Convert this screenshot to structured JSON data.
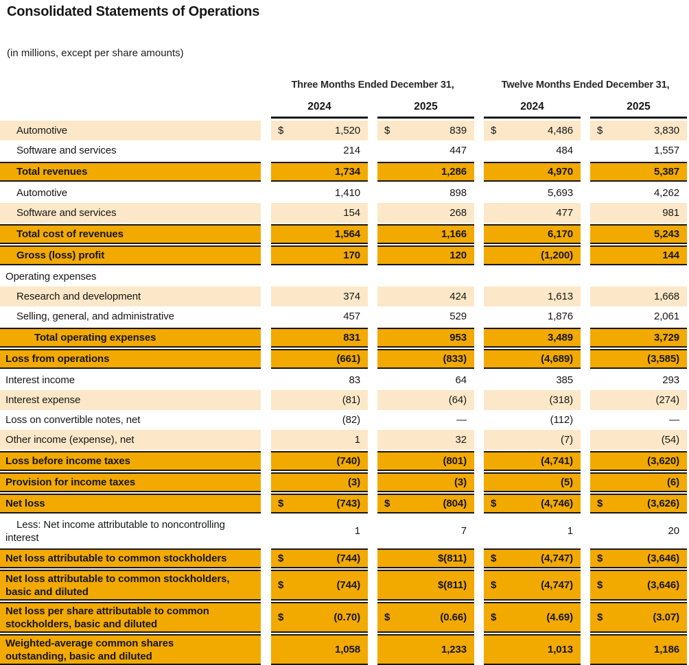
{
  "title": "Consolidated Statements of Operations",
  "subtitle": "(in millions, except per share amounts)",
  "colors": {
    "accent_orange": "#F2A900",
    "accent_cream": "#FCE8C8",
    "text": "#161616"
  },
  "table": {
    "col_groups": [
      "Three Months Ended December 31,",
      "Twelve Months Ended December 31,"
    ],
    "years": [
      "2024",
      "2025",
      "2024",
      "2025"
    ],
    "rows": [
      {
        "label": "Automotive",
        "style": "shaded",
        "indent": 1,
        "cells": [
          {
            "c": "$",
            "v": "1,520"
          },
          {
            "c": "$",
            "v": "839"
          },
          {
            "c": "$",
            "v": "4,486"
          },
          {
            "c": "$",
            "v": "3,830"
          }
        ]
      },
      {
        "label": "Software and services",
        "style": "plain",
        "indent": 1,
        "cells": [
          {
            "c": "",
            "v": "214"
          },
          {
            "c": "",
            "v": "447"
          },
          {
            "c": "",
            "v": "484"
          },
          {
            "c": "",
            "v": "1,557"
          }
        ]
      },
      {
        "label": "Total revenues",
        "style": "total",
        "indent": 1,
        "cells": [
          {
            "c": "",
            "v": "1,734"
          },
          {
            "c": "",
            "v": "1,286"
          },
          {
            "c": "",
            "v": "4,970"
          },
          {
            "c": "",
            "v": "5,387"
          }
        ]
      },
      {
        "label": "Automotive",
        "style": "plain",
        "indent": 1,
        "cells": [
          {
            "c": "",
            "v": "1,410"
          },
          {
            "c": "",
            "v": "898"
          },
          {
            "c": "",
            "v": "5,693"
          },
          {
            "c": "",
            "v": "4,262"
          }
        ]
      },
      {
        "label": "Software and services",
        "style": "shaded",
        "indent": 1,
        "cells": [
          {
            "c": "",
            "v": "154"
          },
          {
            "c": "",
            "v": "268"
          },
          {
            "c": "",
            "v": "477"
          },
          {
            "c": "",
            "v": "981"
          }
        ]
      },
      {
        "label": "Total cost of revenues",
        "style": "total",
        "indent": 1,
        "cells": [
          {
            "c": "",
            "v": "1,564"
          },
          {
            "c": "",
            "v": "1,166"
          },
          {
            "c": "",
            "v": "6,170"
          },
          {
            "c": "",
            "v": "5,243"
          }
        ]
      },
      {
        "label": "Gross (loss) profit",
        "style": "total",
        "indent": 1,
        "cells": [
          {
            "c": "",
            "v": "170"
          },
          {
            "c": "",
            "v": "120"
          },
          {
            "c": "",
            "v": "(1,200)"
          },
          {
            "c": "",
            "v": "144"
          }
        ]
      },
      {
        "label": "Operating expenses",
        "style": "plain",
        "indent": 0,
        "cells": [
          null,
          null,
          null,
          null
        ]
      },
      {
        "label": "Research and development",
        "style": "shaded",
        "indent": 1,
        "cells": [
          {
            "c": "",
            "v": "374"
          },
          {
            "c": "",
            "v": "424"
          },
          {
            "c": "",
            "v": "1,613"
          },
          {
            "c": "",
            "v": "1,668"
          }
        ]
      },
      {
        "label": "Selling, general, and administrative",
        "style": "plain",
        "indent": 1,
        "cells": [
          {
            "c": "",
            "v": "457"
          },
          {
            "c": "",
            "v": "529"
          },
          {
            "c": "",
            "v": "1,876"
          },
          {
            "c": "",
            "v": "2,061"
          }
        ]
      },
      {
        "label": "Total operating expenses",
        "style": "total",
        "indent": 2,
        "cells": [
          {
            "c": "",
            "v": "831"
          },
          {
            "c": "",
            "v": "953"
          },
          {
            "c": "",
            "v": "3,489"
          },
          {
            "c": "",
            "v": "3,729"
          }
        ]
      },
      {
        "label": "Loss from operations",
        "style": "total",
        "indent": 0,
        "cells": [
          {
            "c": "",
            "v": "(661)"
          },
          {
            "c": "",
            "v": "(833)"
          },
          {
            "c": "",
            "v": "(4,689)"
          },
          {
            "c": "",
            "v": "(3,585)"
          }
        ]
      },
      {
        "label": "Interest income",
        "style": "plain",
        "indent": 0,
        "cells": [
          {
            "c": "",
            "v": "83"
          },
          {
            "c": "",
            "v": "64"
          },
          {
            "c": "",
            "v": "385"
          },
          {
            "c": "",
            "v": "293"
          }
        ]
      },
      {
        "label": "Interest expense",
        "style": "shaded",
        "indent": 0,
        "cells": [
          {
            "c": "",
            "v": "(81)"
          },
          {
            "c": "",
            "v": "(64)"
          },
          {
            "c": "",
            "v": "(318)"
          },
          {
            "c": "",
            "v": "(274)"
          }
        ]
      },
      {
        "label": "Loss on convertible notes, net",
        "style": "plain",
        "indent": 0,
        "cells": [
          {
            "c": "",
            "v": "(82)"
          },
          {
            "c": "",
            "v": "—"
          },
          {
            "c": "",
            "v": "(112)"
          },
          {
            "c": "",
            "v": "—"
          }
        ]
      },
      {
        "label": "Other income (expense), net",
        "style": "shaded",
        "indent": 0,
        "cells": [
          {
            "c": "",
            "v": "1"
          },
          {
            "c": "",
            "v": "32"
          },
          {
            "c": "",
            "v": "(7)"
          },
          {
            "c": "",
            "v": "(54)"
          }
        ]
      },
      {
        "label": "Loss before income taxes",
        "style": "total",
        "indent": 0,
        "cells": [
          {
            "c": "",
            "v": "(740)"
          },
          {
            "c": "",
            "v": "(801)"
          },
          {
            "c": "",
            "v": "(4,741)"
          },
          {
            "c": "",
            "v": "(3,620)"
          }
        ]
      },
      {
        "label": "Provision for income taxes",
        "style": "total",
        "indent": 0,
        "cells": [
          {
            "c": "",
            "v": "(3)"
          },
          {
            "c": "",
            "v": "(3)"
          },
          {
            "c": "",
            "v": "(5)"
          },
          {
            "c": "",
            "v": "(6)"
          }
        ]
      },
      {
        "label": "Net loss",
        "style": "total",
        "indent": 0,
        "cells": [
          {
            "c": "$",
            "v": "(743)"
          },
          {
            "c": "$",
            "v": "(804)"
          },
          {
            "c": "$",
            "v": "(4,746)"
          },
          {
            "c": "$",
            "v": "(3,626)"
          }
        ]
      },
      {
        "label": "Less: Net income attributable to noncontrolling\ninterest",
        "style": "plain",
        "indent": 0,
        "hang": true,
        "less": true,
        "cells": [
          {
            "c": "",
            "v": "1"
          },
          {
            "c": "",
            "v": "7"
          },
          {
            "c": "",
            "v": "1"
          },
          {
            "c": "",
            "v": "20"
          }
        ]
      },
      {
        "label": "Net loss attributable to common stockholders",
        "style": "total",
        "indent": 0,
        "cells": [
          {
            "c": "$",
            "v": "(744)"
          },
          {
            "c": "",
            "v": "$(811)"
          },
          {
            "c": "$",
            "v": "(4,747)"
          },
          {
            "c": "$",
            "v": "(3,646)"
          }
        ]
      },
      {
        "label": "Net loss attributable to common stockholders,\nbasic and diluted",
        "style": "total",
        "indent": 0,
        "tall": true,
        "cells": [
          {
            "c": "$",
            "v": "(744)"
          },
          {
            "c": "",
            "v": "$(811)"
          },
          {
            "c": "$",
            "v": "(4,747)"
          },
          {
            "c": "$",
            "v": "(3,646)"
          }
        ]
      },
      {
        "label": "Net loss per share attributable to common\nstockholders, basic and diluted",
        "style": "total",
        "indent": 0,
        "tall": true,
        "cells": [
          {
            "c": "$",
            "v": "(0.70)"
          },
          {
            "c": "$",
            "v": "(0.66)"
          },
          {
            "c": "$",
            "v": "(4.69)"
          },
          {
            "c": "$",
            "v": "(3.07)"
          }
        ]
      },
      {
        "label": "Weighted-average common shares\noutstanding, basic and diluted",
        "style": "total",
        "indent": 0,
        "tall": true,
        "cells": [
          {
            "c": "",
            "v": "1,058"
          },
          {
            "c": "",
            "v": "1,233"
          },
          {
            "c": "",
            "v": "1,013"
          },
          {
            "c": "",
            "v": "1,186"
          }
        ]
      }
    ]
  }
}
